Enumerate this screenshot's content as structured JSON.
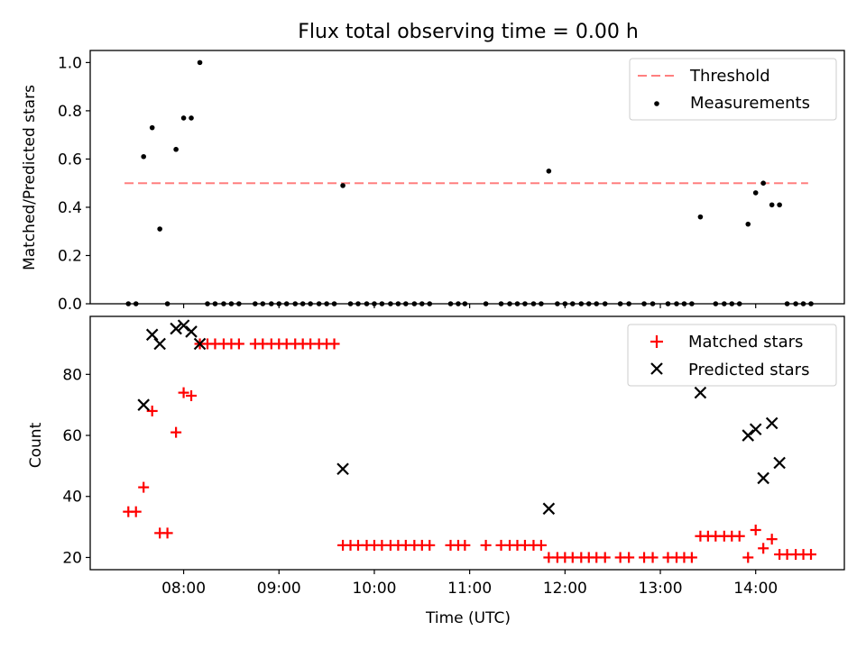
{
  "title": "Flux total observing time = 0.00 h",
  "xlabel": "Time (UTC)",
  "chart_data": [
    {
      "type": "scatter",
      "ylabel": "Matched/Predicted stars",
      "ylim": [
        0,
        1.05
      ],
      "yticks": [
        "0.0",
        "0.2",
        "0.4",
        "0.6",
        "0.8",
        "1.0"
      ],
      "ytick_values": [
        0,
        0.2,
        0.4,
        0.6,
        0.8,
        1.0
      ],
      "xticks": [
        "08:00",
        "09:00",
        "10:00",
        "11:00",
        "12:00",
        "13:00",
        "14:00"
      ],
      "xtick_hours": [
        8,
        9,
        10,
        11,
        12,
        13,
        14
      ],
      "xlim": [
        7.02,
        14.93
      ],
      "legend_position": "top-right",
      "threshold": {
        "name": "Threshold",
        "value": 0.5,
        "x_range": [
          7.38,
          14.55
        ],
        "color": "#ff7f7f",
        "style": "dashed"
      },
      "series": [
        {
          "name": "Measurements",
          "color": "#000000",
          "marker": "dot",
          "x": [
            7.42,
            7.5,
            7.58,
            7.67,
            7.75,
            7.83,
            7.92,
            8.0,
            8.08,
            8.17,
            8.25,
            8.33,
            8.42,
            8.5,
            8.58,
            8.75,
            8.83,
            8.92,
            9.0,
            9.08,
            9.17,
            9.25,
            9.33,
            9.42,
            9.5,
            9.58,
            9.67,
            9.75,
            9.83,
            9.92,
            10.0,
            10.08,
            10.17,
            10.25,
            10.33,
            10.42,
            10.5,
            10.58,
            10.8,
            10.88,
            10.95,
            11.17,
            11.33,
            11.42,
            11.5,
            11.58,
            11.67,
            11.75,
            11.83,
            11.92,
            12.0,
            12.08,
            12.17,
            12.25,
            12.33,
            12.42,
            12.58,
            12.67,
            12.83,
            12.92,
            13.08,
            13.17,
            13.25,
            13.33,
            13.42,
            13.58,
            13.67,
            13.75,
            13.83,
            13.92,
            14.0,
            14.08,
            14.17,
            14.25,
            14.33,
            14.42,
            14.5,
            14.58
          ],
          "y": [
            0,
            0,
            0.61,
            0.73,
            0.31,
            0,
            0.64,
            0.77,
            0.77,
            1.0,
            0,
            0,
            0,
            0,
            0,
            0,
            0,
            0,
            0,
            0,
            0,
            0,
            0,
            0,
            0,
            0,
            0.49,
            0,
            0,
            0,
            0,
            0,
            0,
            0,
            0,
            0,
            0,
            0,
            0,
            0,
            0,
            0,
            0,
            0,
            0,
            0,
            0,
            0,
            0.55,
            0,
            0,
            0,
            0,
            0,
            0,
            0,
            0,
            0,
            0,
            0,
            0,
            0,
            0,
            0,
            0.36,
            0,
            0,
            0,
            0,
            0.33,
            0.46,
            0.5,
            0.41,
            0.41,
            0,
            0,
            0,
            0
          ]
        }
      ]
    },
    {
      "type": "scatter",
      "ylabel": "Count",
      "ylim": [
        16,
        99
      ],
      "yticks": [
        "20",
        "40",
        "60",
        "80"
      ],
      "ytick_values": [
        20,
        40,
        60,
        80
      ],
      "xticks": [
        "08:00",
        "09:00",
        "10:00",
        "11:00",
        "12:00",
        "13:00",
        "14:00"
      ],
      "xtick_hours": [
        8,
        9,
        10,
        11,
        12,
        13,
        14
      ],
      "xlim": [
        7.02,
        14.93
      ],
      "legend_position": "top-right",
      "series": [
        {
          "name": "Matched stars",
          "color": "#ff0000",
          "marker": "plus",
          "x": [
            7.42,
            7.5,
            7.58,
            7.67,
            7.75,
            7.83,
            7.92,
            8.0,
            8.08,
            8.17,
            8.25,
            8.33,
            8.42,
            8.5,
            8.58,
            8.75,
            8.83,
            8.92,
            9.0,
            9.08,
            9.17,
            9.25,
            9.33,
            9.42,
            9.5,
            9.58,
            9.67,
            9.75,
            9.83,
            9.92,
            10.0,
            10.08,
            10.17,
            10.25,
            10.33,
            10.42,
            10.5,
            10.58,
            10.8,
            10.88,
            10.95,
            11.17,
            11.33,
            11.42,
            11.5,
            11.58,
            11.67,
            11.75,
            11.83,
            11.92,
            12.0,
            12.08,
            12.17,
            12.25,
            12.33,
            12.42,
            12.58,
            12.67,
            12.83,
            12.92,
            13.08,
            13.17,
            13.25,
            13.33,
            13.42,
            13.5,
            13.58,
            13.67,
            13.75,
            13.83,
            13.92,
            14.0,
            14.08,
            14.17,
            14.25,
            14.33,
            14.42,
            14.5,
            14.58
          ],
          "y": [
            35,
            35,
            43,
            68,
            28,
            28,
            61,
            74,
            73,
            90,
            90,
            90,
            90,
            90,
            90,
            90,
            90,
            90,
            90,
            90,
            90,
            90,
            90,
            90,
            90,
            90,
            24,
            24,
            24,
            24,
            24,
            24,
            24,
            24,
            24,
            24,
            24,
            24,
            24,
            24,
            24,
            24,
            24,
            24,
            24,
            24,
            24,
            24,
            20,
            20,
            20,
            20,
            20,
            20,
            20,
            20,
            20,
            20,
            20,
            20,
            20,
            20,
            20,
            20,
            27,
            27,
            27,
            27,
            27,
            27,
            20,
            29,
            23,
            26,
            21,
            21,
            21,
            21,
            21
          ]
        },
        {
          "name": "Predicted stars",
          "color": "#000000",
          "marker": "x",
          "x": [
            7.58,
            7.67,
            7.75,
            7.92,
            8.0,
            8.08,
            8.17,
            9.67,
            11.83,
            13.42,
            13.92,
            14.0,
            14.08,
            14.17,
            14.25
          ],
          "y": [
            70,
            93,
            90,
            95,
            96,
            94,
            90,
            49,
            36,
            74,
            60,
            62,
            46,
            64,
            51
          ]
        }
      ]
    }
  ]
}
